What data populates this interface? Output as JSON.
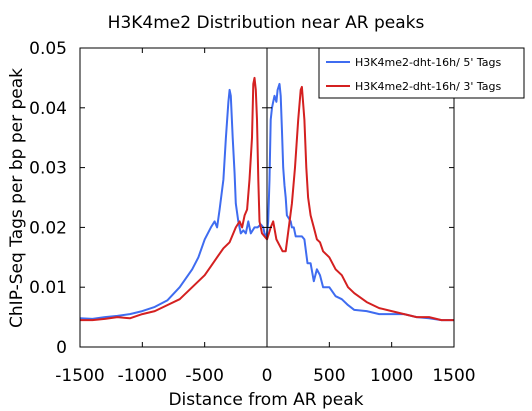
{
  "chart_data": {
    "type": "line",
    "title": "H3K4me2 Distribution near AR peaks",
    "xlabel": "Distance from AR peak",
    "ylabel": "ChIP-Seq Tags per bp per peak",
    "xlim": [
      -1500,
      1500
    ],
    "ylim": [
      0,
      0.05
    ],
    "xticks": [
      -1500,
      -1000,
      -500,
      0,
      500,
      1000,
      1500
    ],
    "xtick_labels": [
      "-1500",
      "-1000",
      "-500",
      "0",
      "500",
      "1000",
      "1500"
    ],
    "yticks": [
      0,
      0.01,
      0.02,
      0.03,
      0.04,
      0.05
    ],
    "ytick_labels": [
      "0",
      "0.01",
      "0.02",
      "0.03",
      "0.04",
      "0.05"
    ],
    "legend_position": "top-right",
    "grid": false,
    "series": [
      {
        "name": "H3K4me2-dht-16h/ 5' Tags",
        "color": "#3f6cf0",
        "x": [
          -1500,
          -1400,
          -1300,
          -1200,
          -1100,
          -1000,
          -900,
          -800,
          -700,
          -650,
          -600,
          -550,
          -500,
          -450,
          -420,
          -400,
          -380,
          -350,
          -330,
          -310,
          -300,
          -290,
          -275,
          -260,
          -250,
          -230,
          -210,
          -190,
          -170,
          -150,
          -130,
          -100,
          -75,
          -50,
          -30,
          -20,
          -10,
          0,
          10,
          20,
          30,
          40,
          50,
          60,
          75,
          85,
          100,
          110,
          120,
          130,
          140,
          150,
          160,
          175,
          190,
          200,
          215,
          230,
          250,
          280,
          300,
          325,
          350,
          375,
          400,
          425,
          450,
          475,
          500,
          550,
          600,
          650,
          700,
          800,
          900,
          1000,
          1100,
          1200,
          1300,
          1400,
          1500
        ],
        "y": [
          0.0048,
          0.0047,
          0.005,
          0.0052,
          0.0055,
          0.006,
          0.0067,
          0.0078,
          0.01,
          0.0115,
          0.013,
          0.015,
          0.018,
          0.02,
          0.021,
          0.02,
          0.023,
          0.028,
          0.035,
          0.041,
          0.043,
          0.042,
          0.035,
          0.029,
          0.024,
          0.021,
          0.019,
          0.0195,
          0.019,
          0.021,
          0.019,
          0.02,
          0.02,
          0.0205,
          0.02,
          0.019,
          0.0185,
          0.019,
          0.021,
          0.028,
          0.038,
          0.04,
          0.041,
          0.042,
          0.041,
          0.043,
          0.044,
          0.042,
          0.036,
          0.03,
          0.027,
          0.025,
          0.022,
          0.0215,
          0.021,
          0.02,
          0.02,
          0.0185,
          0.0185,
          0.0185,
          0.018,
          0.014,
          0.014,
          0.011,
          0.013,
          0.012,
          0.01,
          0.01,
          0.01,
          0.0085,
          0.008,
          0.007,
          0.0062,
          0.006,
          0.0055,
          0.0055,
          0.0055,
          0.005,
          0.0048,
          0.0045,
          0.0045
        ]
      },
      {
        "name": "H3K4me2-dht-16h/ 3' Tags",
        "color": "#d42020",
        "x": [
          -1500,
          -1400,
          -1300,
          -1200,
          -1100,
          -1000,
          -900,
          -800,
          -700,
          -600,
          -500,
          -450,
          -400,
          -350,
          -300,
          -270,
          -250,
          -220,
          -200,
          -180,
          -160,
          -140,
          -120,
          -110,
          -100,
          -90,
          -80,
          -70,
          -60,
          -50,
          -40,
          -20,
          0,
          15,
          30,
          50,
          75,
          100,
          125,
          150,
          175,
          200,
          225,
          250,
          270,
          280,
          300,
          315,
          330,
          350,
          375,
          400,
          425,
          450,
          475,
          500,
          550,
          600,
          650,
          700,
          800,
          900,
          1000,
          1100,
          1200,
          1300,
          1400,
          1500
        ],
        "y": [
          0.0045,
          0.0045,
          0.0047,
          0.005,
          0.0048,
          0.0055,
          0.006,
          0.007,
          0.008,
          0.01,
          0.012,
          0.0135,
          0.015,
          0.0165,
          0.0175,
          0.019,
          0.02,
          0.021,
          0.02,
          0.022,
          0.023,
          0.028,
          0.035,
          0.044,
          0.045,
          0.043,
          0.038,
          0.028,
          0.021,
          0.02,
          0.019,
          0.0185,
          0.018,
          0.019,
          0.02,
          0.021,
          0.018,
          0.017,
          0.016,
          0.016,
          0.02,
          0.024,
          0.03,
          0.038,
          0.043,
          0.0435,
          0.038,
          0.03,
          0.025,
          0.022,
          0.02,
          0.018,
          0.0175,
          0.016,
          0.0155,
          0.015,
          0.013,
          0.012,
          0.01,
          0.009,
          0.0075,
          0.0065,
          0.006,
          0.0055,
          0.005,
          0.005,
          0.0045,
          0.0045
        ]
      }
    ]
  }
}
